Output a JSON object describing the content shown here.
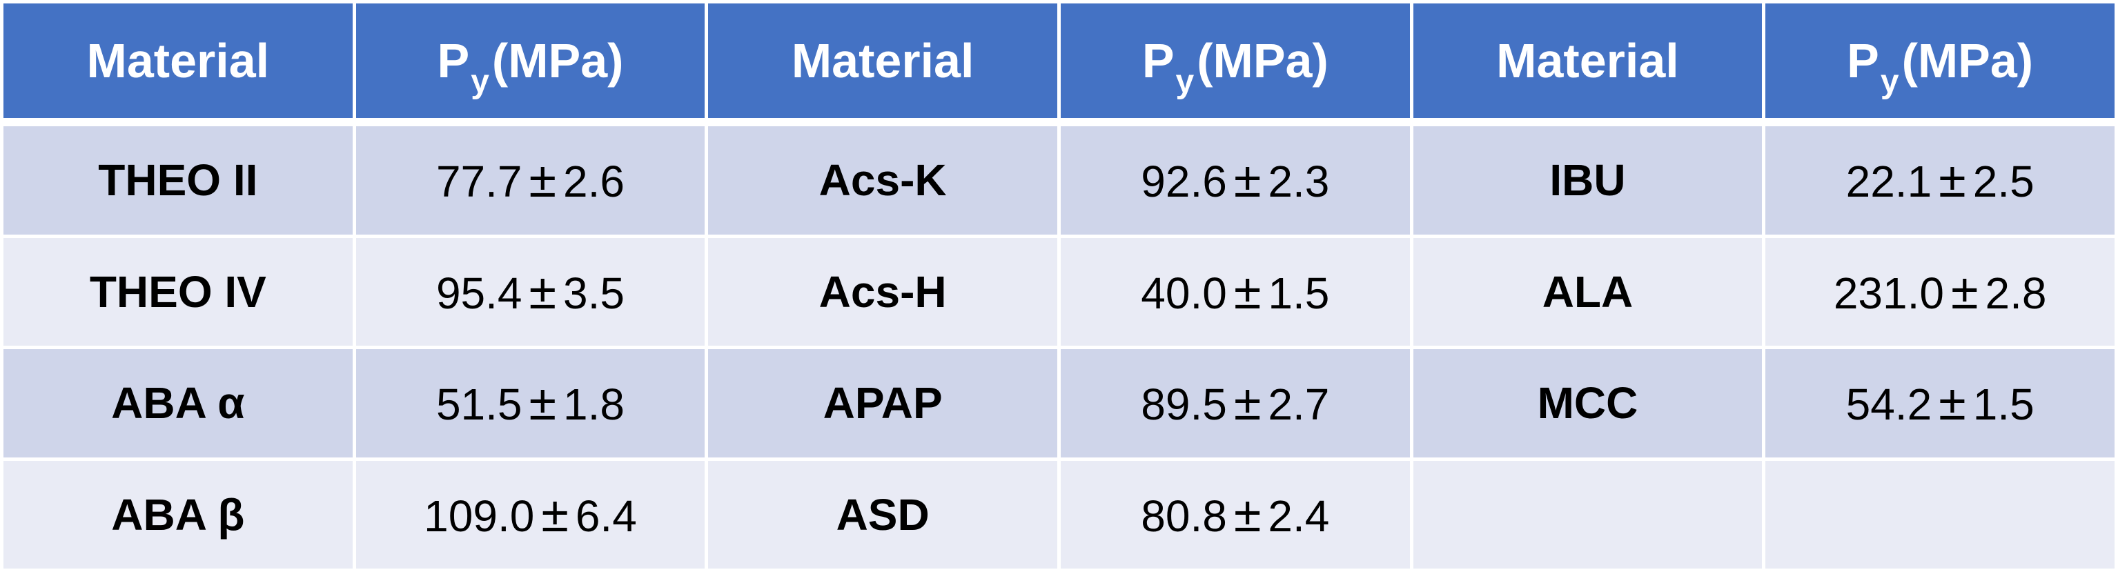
{
  "header": {
    "material_label": "Material",
    "py_main": "P",
    "py_sub": "y",
    "py_unit": "(MPa)"
  },
  "plusminus": "±",
  "rows": [
    [
      {
        "material": "THEO II",
        "mean": "77.7",
        "err": "2.6"
      },
      {
        "material": "Acs-K",
        "mean": "92.6",
        "err": "2.3"
      },
      {
        "material": "IBU",
        "mean": "22.1",
        "err": "2.5"
      }
    ],
    [
      {
        "material": "THEO IV",
        "mean": "95.4",
        "err": "3.5"
      },
      {
        "material": "Acs-H",
        "mean": "40.0",
        "err": "1.5"
      },
      {
        "material": "ALA",
        "mean": "231.0",
        "err": "2.8"
      }
    ],
    [
      {
        "material": "ABA α",
        "mean": "51.5",
        "err": "1.8"
      },
      {
        "material": "APAP",
        "mean": "89.5",
        "err": "2.7"
      },
      {
        "material": "MCC",
        "mean": "54.2",
        "err": "1.5"
      }
    ],
    [
      {
        "material": "ABA β",
        "mean": "109.0",
        "err": "6.4"
      },
      {
        "material": "ASD",
        "mean": "80.8",
        "err": "2.4"
      },
      {
        "material": "",
        "mean": "",
        "err": ""
      }
    ]
  ]
}
